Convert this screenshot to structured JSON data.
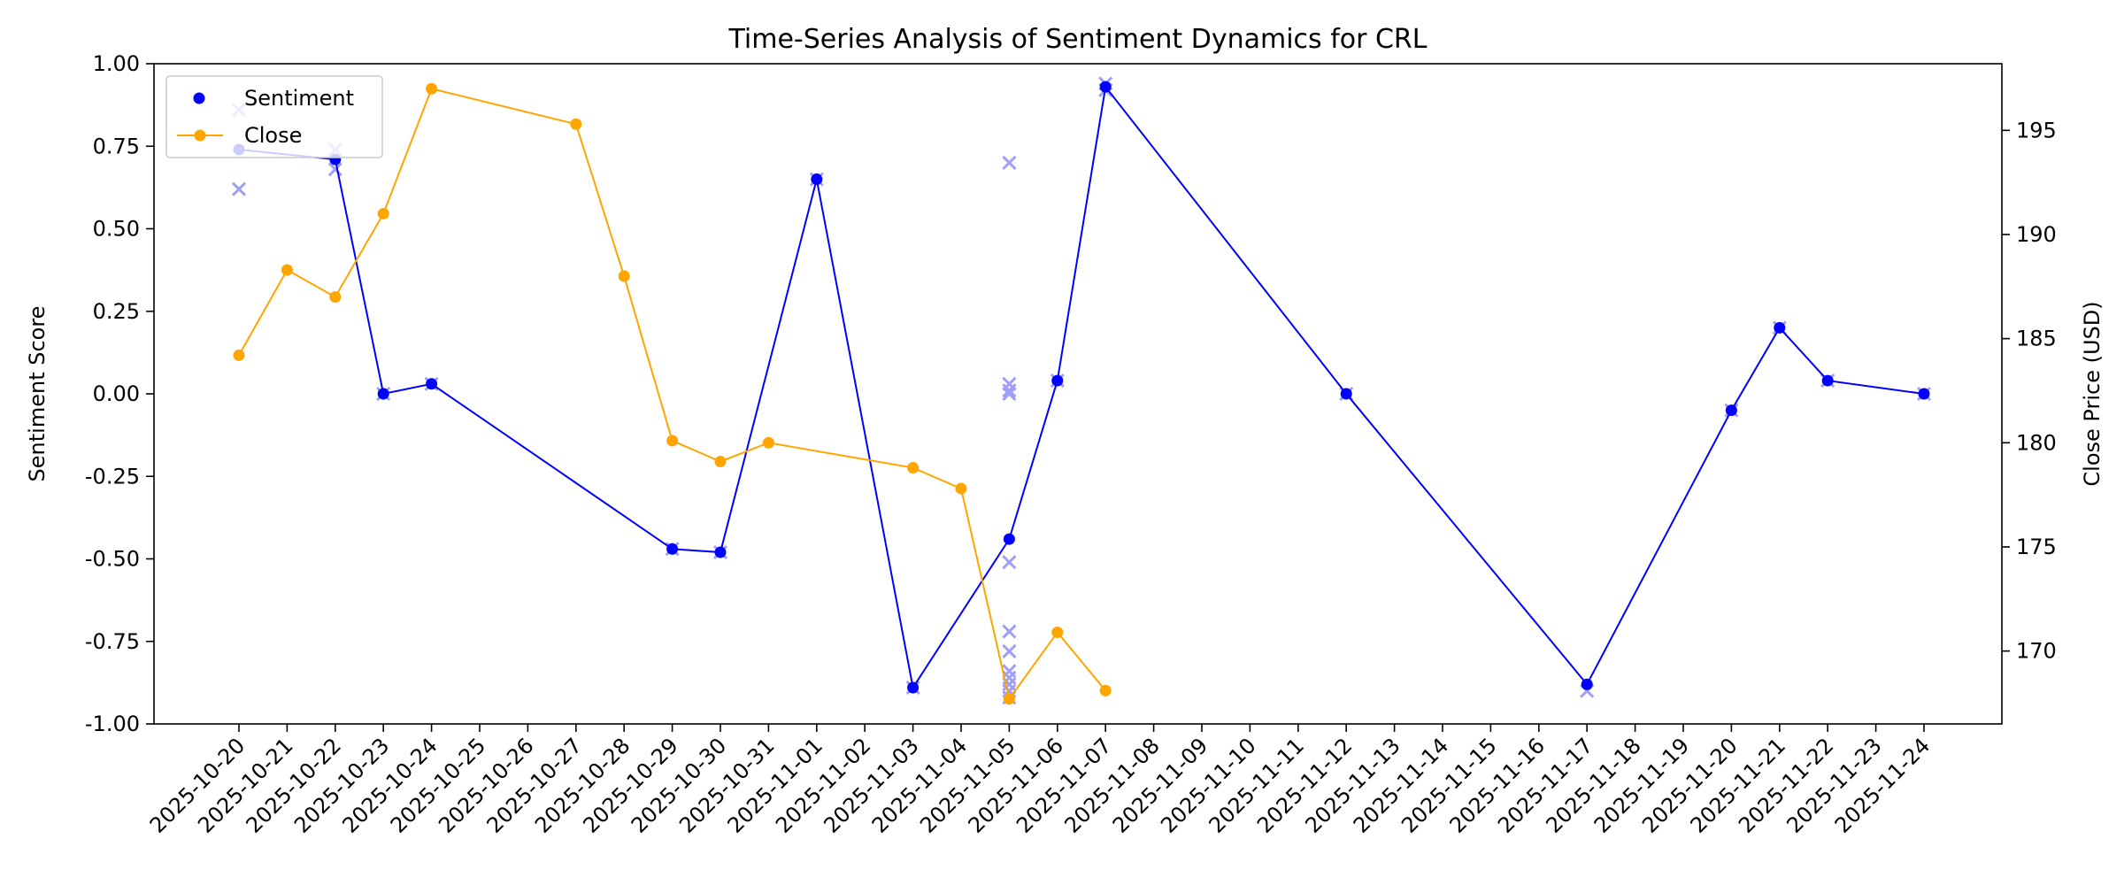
{
  "chart_data": {
    "type": "line",
    "title": "Time-Series Analysis of Sentiment Dynamics for CRL",
    "xlabel": "",
    "ylabel_left": "Sentiment Score",
    "ylabel_right": "Close Price (USD)",
    "ylim_left": [
      -1.0,
      1.0
    ],
    "ylim_right": [
      166.5,
      198.2
    ],
    "x_ticks": [
      "2025-10-20",
      "2025-10-21",
      "2025-10-22",
      "2025-10-23",
      "2025-10-24",
      "2025-10-25",
      "2025-10-26",
      "2025-10-27",
      "2025-10-28",
      "2025-10-29",
      "2025-10-30",
      "2025-10-31",
      "2025-11-01",
      "2025-11-02",
      "2025-11-03",
      "2025-11-04",
      "2025-11-05",
      "2025-11-06",
      "2025-11-07",
      "2025-11-08",
      "2025-11-09",
      "2025-11-10",
      "2025-11-11",
      "2025-11-12",
      "2025-11-13",
      "2025-11-14",
      "2025-11-15",
      "2025-11-16",
      "2025-11-17",
      "2025-11-18",
      "2025-11-19",
      "2025-11-20",
      "2025-11-21",
      "2025-11-22",
      "2025-11-23",
      "2025-11-24"
    ],
    "left_ticks": [
      "1.00",
      "0.75",
      "0.50",
      "0.25",
      "0.00",
      "-0.25",
      "-0.50",
      "-0.75",
      "-1.00"
    ],
    "right_ticks": [
      "195",
      "190",
      "185",
      "180",
      "175",
      "170"
    ],
    "legend": {
      "placement": "upper-left",
      "entries": [
        "Sentiment",
        "Close"
      ]
    },
    "grid": false,
    "series": [
      {
        "name": "Sentiment",
        "axis": "left",
        "color": "#0000ff",
        "x": [
          "2025-10-20",
          "2025-10-22",
          "2025-10-23",
          "2025-10-24",
          "2025-10-29",
          "2025-10-30",
          "2025-11-01",
          "2025-11-03",
          "2025-11-05",
          "2025-11-06",
          "2025-11-07",
          "2025-11-12",
          "2025-11-17",
          "2025-11-20",
          "2025-11-21",
          "2025-11-22",
          "2025-11-24"
        ],
        "y": [
          0.74,
          0.71,
          0.0,
          0.03,
          -0.47,
          -0.48,
          0.65,
          -0.89,
          -0.44,
          0.04,
          0.93,
          0.0,
          -0.88,
          -0.05,
          0.2,
          0.04,
          0.0
        ]
      },
      {
        "name": "Close",
        "axis": "right",
        "color": "#ffa500",
        "x": [
          "2025-10-20",
          "2025-10-21",
          "2025-10-22",
          "2025-10-23",
          "2025-10-24",
          "2025-10-27",
          "2025-10-28",
          "2025-10-29",
          "2025-10-30",
          "2025-10-31",
          "2025-11-03",
          "2025-11-04",
          "2025-11-05",
          "2025-11-06",
          "2025-11-07"
        ],
        "y": [
          184.2,
          188.3,
          187.0,
          191.0,
          197.0,
          195.3,
          188.0,
          180.1,
          179.1,
          180.0,
          178.8,
          177.8,
          167.7,
          170.9,
          168.1
        ]
      },
      {
        "name": "",
        "axis": "left",
        "color": "#9f9ff8",
        "marker": "x",
        "x": [
          "2025-10-20",
          "2025-10-20",
          "2025-10-22",
          "2025-10-22",
          "2025-10-23",
          "2025-10-24",
          "2025-10-29",
          "2025-10-30",
          "2025-11-01",
          "2025-11-03",
          "2025-11-05",
          "2025-11-05",
          "2025-11-05",
          "2025-11-05",
          "2025-11-05",
          "2025-11-05",
          "2025-11-05",
          "2025-11-05",
          "2025-11-05",
          "2025-11-05",
          "2025-11-05",
          "2025-11-05",
          "2025-11-06",
          "2025-11-07",
          "2025-11-07",
          "2025-11-12",
          "2025-11-17",
          "2025-11-20",
          "2025-11-21",
          "2025-11-22",
          "2025-11-24"
        ],
        "y": [
          0.86,
          0.62,
          0.74,
          0.68,
          0.0,
          0.03,
          -0.47,
          -0.48,
          0.65,
          -0.89,
          0.7,
          0.03,
          0.01,
          0.0,
          -0.51,
          -0.72,
          -0.78,
          -0.84,
          -0.86,
          -0.88,
          -0.9,
          -0.92,
          0.04,
          0.94,
          0.92,
          0.0,
          -0.9,
          -0.05,
          0.2,
          0.04,
          0.0
        ]
      }
    ]
  }
}
